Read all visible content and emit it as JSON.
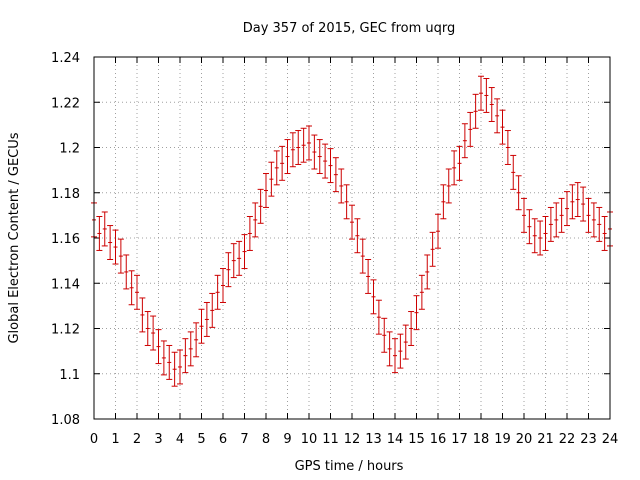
{
  "chart_data": {
    "type": "scatter",
    "title": "Day 357 of 2015, GEC from uqrg",
    "xlabel": "GPS time / hours",
    "ylabel": "Global Electron Content / GECUs",
    "xlim": [
      0,
      24
    ],
    "ylim": [
      1.08,
      1.24
    ],
    "x_ticks": [
      "0",
      "1",
      "2",
      "3",
      "4",
      "5",
      "6",
      "7",
      "8",
      "9",
      "10",
      "11",
      "12",
      "13",
      "14",
      "15",
      "16",
      "17",
      "18",
      "19",
      "20",
      "21",
      "22",
      "23",
      "24"
    ],
    "y_ticks": [
      "1.08",
      "1.1",
      "1.12",
      "1.14",
      "1.16",
      "1.18",
      "1.2",
      "1.22",
      "1.24"
    ],
    "grid": true,
    "color": "#cc0000",
    "series": [
      {
        "error": 0.0075,
        "points": [
          [
            0.0,
            1.168
          ],
          [
            0.25,
            1.162
          ],
          [
            0.5,
            1.164
          ],
          [
            0.75,
            1.158
          ],
          [
            1.0,
            1.156
          ],
          [
            1.25,
            1.152
          ],
          [
            1.5,
            1.145
          ],
          [
            1.75,
            1.138
          ],
          [
            2.0,
            1.136
          ],
          [
            2.25,
            1.126
          ],
          [
            2.5,
            1.12
          ],
          [
            2.75,
            1.118
          ],
          [
            3.0,
            1.112
          ],
          [
            3.25,
            1.107
          ],
          [
            3.5,
            1.105
          ],
          [
            3.75,
            1.102
          ],
          [
            4.0,
            1.103
          ],
          [
            4.25,
            1.108
          ],
          [
            4.5,
            1.111
          ],
          [
            4.75,
            1.115
          ],
          [
            5.0,
            1.121
          ],
          [
            5.25,
            1.124
          ],
          [
            5.5,
            1.128
          ],
          [
            5.75,
            1.136
          ],
          [
            6.0,
            1.139
          ],
          [
            6.25,
            1.146
          ],
          [
            6.5,
            1.15
          ],
          [
            6.75,
            1.151
          ],
          [
            7.0,
            1.154
          ],
          [
            7.25,
            1.162
          ],
          [
            7.5,
            1.168
          ],
          [
            7.75,
            1.174
          ],
          [
            8.0,
            1.181
          ],
          [
            8.25,
            1.186
          ],
          [
            8.5,
            1.191
          ],
          [
            8.75,
            1.193
          ],
          [
            9.0,
            1.196
          ],
          [
            9.25,
            1.199
          ],
          [
            9.5,
            1.2
          ],
          [
            9.75,
            1.201
          ],
          [
            10.0,
            1.202
          ],
          [
            10.25,
            1.198
          ],
          [
            10.5,
            1.196
          ],
          [
            10.75,
            1.194
          ],
          [
            11.0,
            1.192
          ],
          [
            11.25,
            1.188
          ],
          [
            11.5,
            1.183
          ],
          [
            11.75,
            1.176
          ],
          [
            12.0,
            1.167
          ],
          [
            12.25,
            1.161
          ],
          [
            12.5,
            1.152
          ],
          [
            12.75,
            1.143
          ],
          [
            13.0,
            1.134
          ],
          [
            13.25,
            1.125
          ],
          [
            13.5,
            1.117
          ],
          [
            13.75,
            1.111
          ],
          [
            14.0,
            1.108
          ],
          [
            14.25,
            1.11
          ],
          [
            14.5,
            1.114
          ],
          [
            14.75,
            1.12
          ],
          [
            15.0,
            1.127
          ],
          [
            15.25,
            1.136
          ],
          [
            15.5,
            1.145
          ],
          [
            15.75,
            1.155
          ],
          [
            16.0,
            1.163
          ],
          [
            16.25,
            1.176
          ],
          [
            16.5,
            1.183
          ],
          [
            16.75,
            1.191
          ],
          [
            17.0,
            1.193
          ],
          [
            17.25,
            1.203
          ],
          [
            17.5,
            1.208
          ],
          [
            17.75,
            1.216
          ],
          [
            18.0,
            1.224
          ],
          [
            18.25,
            1.223
          ],
          [
            18.5,
            1.219
          ],
          [
            18.75,
            1.214
          ],
          [
            19.0,
            1.209
          ],
          [
            19.25,
            1.2
          ],
          [
            19.5,
            1.189
          ],
          [
            19.75,
            1.18
          ],
          [
            20.0,
            1.17
          ],
          [
            20.25,
            1.165
          ],
          [
            20.5,
            1.161
          ],
          [
            20.75,
            1.16
          ],
          [
            21.0,
            1.162
          ],
          [
            21.25,
            1.166
          ],
          [
            21.5,
            1.168
          ],
          [
            21.75,
            1.17
          ],
          [
            22.0,
            1.173
          ],
          [
            22.25,
            1.176
          ],
          [
            22.5,
            1.177
          ],
          [
            22.75,
            1.175
          ],
          [
            23.0,
            1.17
          ],
          [
            23.25,
            1.168
          ],
          [
            23.5,
            1.166
          ],
          [
            23.75,
            1.162
          ],
          [
            24.0,
            1.164
          ]
        ]
      }
    ]
  }
}
